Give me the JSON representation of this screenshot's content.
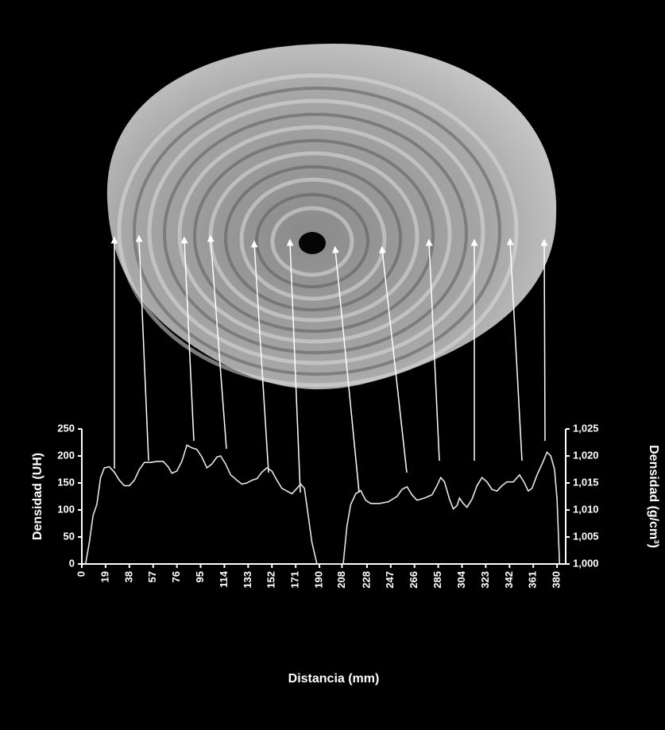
{
  "chart_data": {
    "type": "line",
    "x_label": "Distancia (mm)",
    "y_label": "Densidad (UH)",
    "y2_label": "Densidad (g/cm³)",
    "x": [
      3,
      6,
      9,
      12,
      15,
      18,
      22,
      26,
      30,
      34,
      38,
      42,
      46,
      50,
      55,
      60,
      65,
      69,
      72,
      76,
      80,
      84,
      88,
      92,
      96,
      100,
      104,
      108,
      111,
      115,
      119,
      124,
      128,
      132,
      136,
      140,
      144,
      148,
      152,
      156,
      160,
      164,
      168,
      172,
      175,
      178,
      181,
      184,
      188,
      209,
      212,
      215,
      219,
      223,
      227,
      231,
      238,
      245,
      252,
      256,
      260,
      264,
      268,
      274,
      280,
      284,
      287,
      290,
      294,
      297,
      300,
      302,
      305,
      308,
      312,
      316,
      320,
      324,
      328,
      332,
      336,
      340,
      345,
      350,
      354,
      357,
      360,
      364,
      368,
      372,
      375,
      378,
      380,
      382
    ],
    "series": [
      {
        "color": "#e6e6e6",
        "values": [
          0,
          40,
          90,
          110,
          160,
          178,
          180,
          170,
          155,
          145,
          145,
          155,
          175,
          188,
          188,
          190,
          190,
          180,
          168,
          172,
          190,
          220,
          215,
          212,
          198,
          178,
          185,
          198,
          200,
          185,
          165,
          155,
          148,
          150,
          155,
          158,
          170,
          178,
          172,
          155,
          140,
          135,
          130,
          140,
          148,
          140,
          90,
          40,
          0,
          0,
          70,
          110,
          130,
          136,
          118,
          112,
          112,
          115,
          125,
          138,
          143,
          128,
          118,
          122,
          128,
          145,
          160,
          152,
          120,
          102,
          108,
          122,
          112,
          105,
          120,
          145,
          160,
          152,
          138,
          135,
          145,
          152,
          152,
          165,
          150,
          135,
          140,
          165,
          185,
          207,
          200,
          175,
          120,
          0
        ]
      }
    ],
    "xlim": [
      0,
      385
    ],
    "xticks": [
      0,
      19,
      38,
      57,
      76,
      95,
      114,
      133,
      152,
      171,
      190,
      208,
      228,
      247,
      266,
      285,
      304,
      323,
      342,
      361,
      380
    ],
    "ylim": [
      0,
      250
    ],
    "yticks": [
      0,
      50,
      100,
      150,
      200,
      250
    ],
    "y2lim": [
      1.0,
      1.025
    ],
    "y2ticks": [
      {
        "value": 1.0,
        "label": "1,000"
      },
      {
        "value": 1.005,
        "label": "1,005"
      },
      {
        "value": 1.01,
        "label": "1,010"
      },
      {
        "value": 1.015,
        "label": "1,015"
      },
      {
        "value": 1.02,
        "label": "1,020"
      },
      {
        "value": 1.025,
        "label": "1,025"
      }
    ]
  }
}
